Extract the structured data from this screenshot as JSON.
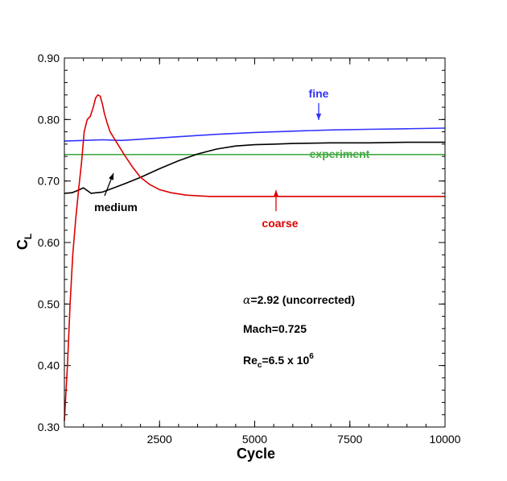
{
  "chart_data": {
    "type": "line",
    "xlabel": "Cycle",
    "ylabel_main": "C",
    "ylabel_sub": "L",
    "xlim": [
      0,
      10000
    ],
    "ylim": [
      0.3,
      0.9
    ],
    "xticks": [
      2500,
      5000,
      7500,
      10000
    ],
    "xtick_labels": [
      "2500",
      "5000",
      "7500",
      "10000"
    ],
    "yticks": [
      0.3,
      0.4,
      0.5,
      0.6,
      0.7,
      0.8,
      0.9
    ],
    "ytick_labels": [
      "0.30",
      "0.40",
      "0.50",
      "0.60",
      "0.70",
      "0.80",
      "0.90"
    ],
    "grid": false,
    "series": [
      {
        "name": "fine",
        "color": "#3333ff",
        "x": [
          0,
          500,
          1000,
          1500,
          2000,
          3000,
          4000,
          5000,
          6000,
          7000,
          8000,
          9000,
          10000
        ],
        "y": [
          0.765,
          0.766,
          0.767,
          0.766,
          0.768,
          0.772,
          0.776,
          0.779,
          0.781,
          0.783,
          0.784,
          0.785,
          0.786
        ]
      },
      {
        "name": "experiment",
        "color": "#44aa44",
        "x": [
          0,
          10000
        ],
        "y": [
          0.743,
          0.743
        ]
      },
      {
        "name": "medium",
        "color": "#000000",
        "x": [
          0,
          200,
          400,
          500,
          700,
          1000,
          1300,
          1600,
          2000,
          2500,
          3000,
          3500,
          4000,
          4500,
          5000,
          5500,
          6000,
          7000,
          8000,
          9000,
          10000
        ],
        "y": [
          0.68,
          0.681,
          0.686,
          0.689,
          0.68,
          0.682,
          0.689,
          0.696,
          0.706,
          0.72,
          0.733,
          0.744,
          0.752,
          0.757,
          0.759,
          0.76,
          0.761,
          0.762,
          0.762,
          0.763,
          0.763
        ]
      },
      {
        "name": "coarse",
        "color": "#dd0000",
        "x": [
          0,
          80,
          150,
          220,
          300,
          380,
          450,
          520,
          600,
          680,
          760,
          820,
          880,
          940,
          1000,
          1050,
          1120,
          1200,
          1300,
          1450,
          1600,
          1800,
          2000,
          2250,
          2500,
          2800,
          3200,
          3800,
          4500,
          6000,
          8000,
          10000
        ],
        "y": [
          0.31,
          0.4,
          0.5,
          0.58,
          0.64,
          0.69,
          0.73,
          0.78,
          0.8,
          0.805,
          0.82,
          0.835,
          0.84,
          0.838,
          0.825,
          0.81,
          0.795,
          0.78,
          0.77,
          0.755,
          0.74,
          0.722,
          0.706,
          0.694,
          0.686,
          0.681,
          0.677,
          0.675,
          0.675,
          0.675,
          0.675,
          0.675
        ]
      }
    ],
    "annotations": [
      {
        "label": "fine",
        "color": "#3333ff"
      },
      {
        "label": "experiment",
        "color": "#44aa44"
      },
      {
        "label": "medium",
        "color": "#000000"
      },
      {
        "label": "coarse",
        "color": "#dd0000"
      }
    ],
    "conditions": {
      "alpha_symbol": "α",
      "alpha_text": "=2.92 (uncorrected)",
      "mach": "Mach=0.725",
      "re_main": "Re",
      "re_sub": "c",
      "re_value": "=6.5 x 10",
      "re_exp": "6"
    }
  }
}
